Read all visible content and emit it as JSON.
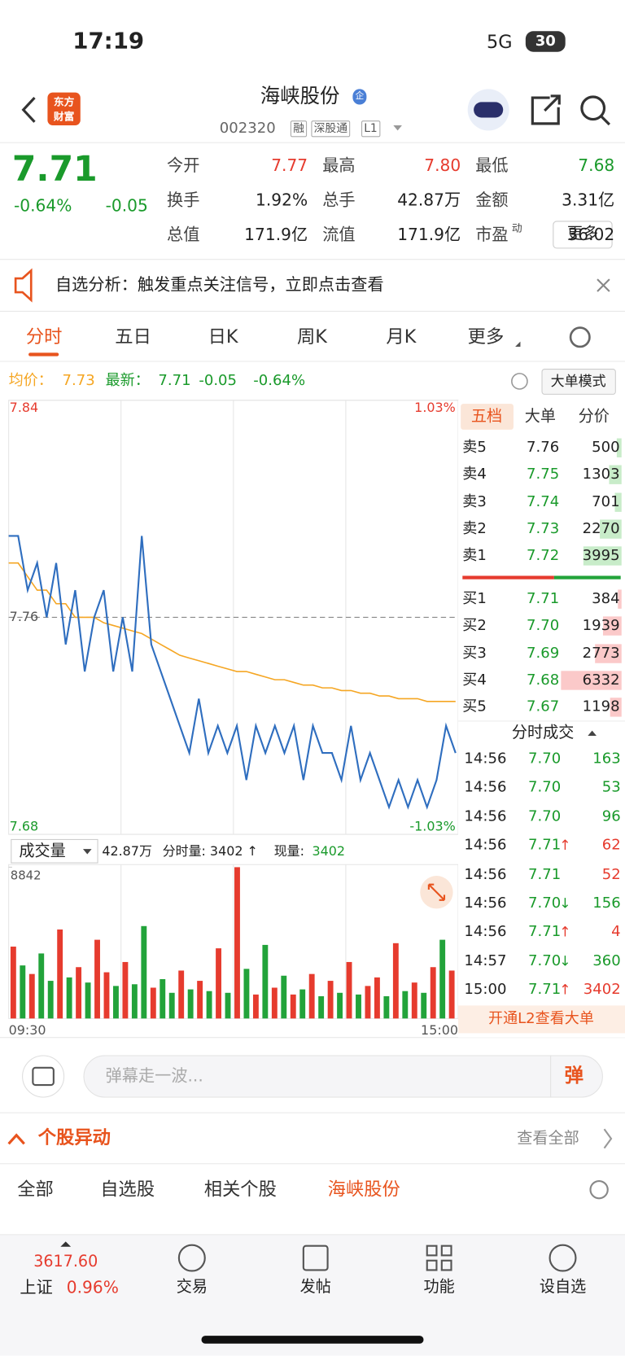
{
  "status": {
    "time": "17:19",
    "network": "5G",
    "battery": "30"
  },
  "header": {
    "logo": [
      "东方",
      "财富"
    ],
    "title": "海峡股份",
    "badge": "企",
    "code": "002320",
    "tags": [
      "融",
      "深股通",
      "L1"
    ]
  },
  "quote": {
    "price": "7.71",
    "change_pct": "-0.64%",
    "change": "-0.05",
    "color": "#1a9a2b",
    "stats": [
      {
        "label": "今开",
        "value": "7.77",
        "color": "#e63b2e"
      },
      {
        "label": "最高",
        "value": "7.80",
        "color": "#e63b2e"
      },
      {
        "label": "最低",
        "value": "7.68",
        "color": "#1a9a2b"
      },
      {
        "label": "换手",
        "value": "1.92%",
        "color": "#222222"
      },
      {
        "label": "总手",
        "value": "42.87万",
        "color": "#222222"
      },
      {
        "label": "金额",
        "value": "3.31亿",
        "color": "#222222"
      },
      {
        "label": "总值",
        "value": "171.9亿",
        "color": "#222222"
      },
      {
        "label": "流值",
        "value": "171.9亿",
        "color": "#222222"
      },
      {
        "label": "市盈",
        "sup": "动",
        "value": "36.02",
        "color": "#222222"
      }
    ],
    "more": "更多"
  },
  "notice": {
    "text": "自选分析：触发重点关注信号，立即点击查看"
  },
  "tabs": [
    "分时",
    "五日",
    "日K",
    "周K",
    "月K",
    "更多"
  ],
  "info_bar": {
    "avg_label": "均价：",
    "avg": "7.73",
    "last_label": "最新：",
    "last": "7.71",
    "change": "-0.05",
    "change_pct": "-0.64%",
    "mode": "大单模式"
  },
  "chart_data": [
    {
      "type": "line",
      "ylim": [
        7.68,
        7.84
      ],
      "yticks": [
        7.84,
        7.76,
        7.68
      ],
      "y2lim": [
        -1.03,
        1.03
      ],
      "y2ticks": [
        {
          "value": 1.03,
          "label": "1.03%"
        },
        {
          "value": -1.03,
          "label": "-1.03%"
        }
      ],
      "series": [
        {
          "color": "#2f6ebf",
          "values": [
            7.79,
            7.79,
            7.77,
            7.78,
            7.76,
            7.78,
            7.75,
            7.77,
            7.74,
            7.76,
            7.77,
            7.74,
            7.76,
            7.74,
            7.79,
            7.75,
            7.74,
            7.73,
            7.72,
            7.71,
            7.73,
            7.71,
            7.72,
            7.71,
            7.72,
            7.7,
            7.72,
            7.71,
            7.72,
            7.71,
            7.72,
            7.7,
            7.72,
            7.71,
            7.71,
            7.7,
            7.72,
            7.7,
            7.71,
            7.7,
            7.69,
            7.7,
            7.69,
            7.7,
            7.69,
            7.7,
            7.72,
            7.71
          ]
        },
        {
          "color": "#f5a623",
          "values": [
            7.78,
            7.78,
            7.775,
            7.77,
            7.77,
            7.765,
            7.765,
            7.76,
            7.76,
            7.76,
            7.758,
            7.757,
            7.756,
            7.755,
            7.754,
            7.752,
            7.75,
            7.748,
            7.746,
            7.745,
            7.744,
            7.743,
            7.742,
            7.741,
            7.74,
            7.74,
            7.739,
            7.738,
            7.737,
            7.737,
            7.736,
            7.735,
            7.735,
            7.734,
            7.734,
            7.733,
            7.733,
            7.732,
            7.732,
            7.731,
            7.731,
            7.73,
            7.73,
            7.73,
            7.729,
            7.729,
            7.729,
            7.729
          ]
        }
      ]
    },
    {
      "type": "bar",
      "ylim": [
        0,
        8842
      ],
      "yticks": [
        8842
      ],
      "x_labels": [
        "09:30",
        "15:00"
      ],
      "values": [
        4200,
        3100,
        2600,
        3800,
        2200,
        5200,
        2400,
        3000,
        2100,
        4600,
        2700,
        1900,
        3300,
        2000,
        5400,
        1800,
        2300,
        1500,
        2800,
        1700,
        2200,
        1600,
        4100,
        1500,
        8842,
        2900,
        1400,
        4300,
        1800,
        2500,
        1400,
        1700,
        2600,
        1300,
        2200,
        1500,
        3300,
        1400,
        1900,
        2400,
        1300,
        4400,
        1600,
        2100,
        1500,
        3000,
        4600,
        2800
      ],
      "colors": [
        "#e63b2e",
        "#22a33a",
        "#e63b2e",
        "#22a33a",
        "#22a33a",
        "#e63b2e",
        "#22a33a",
        "#e63b2e",
        "#22a33a",
        "#e63b2e",
        "#e63b2e",
        "#22a33a",
        "#e63b2e",
        "#22a33a",
        "#22a33a",
        "#e63b2e",
        "#22a33a",
        "#22a33a",
        "#e63b2e",
        "#22a33a",
        "#e63b2e",
        "#22a33a",
        "#e63b2e",
        "#22a33a",
        "#e63b2e",
        "#22a33a",
        "#e63b2e",
        "#22a33a",
        "#e63b2e",
        "#22a33a",
        "#e63b2e",
        "#22a33a",
        "#e63b2e",
        "#22a33a",
        "#e63b2e",
        "#22a33a",
        "#e63b2e",
        "#22a33a",
        "#e63b2e",
        "#e63b2e",
        "#22a33a",
        "#e63b2e",
        "#22a33a",
        "#e63b2e",
        "#22a33a",
        "#e63b2e",
        "#22a33a",
        "#e63b2e"
      ],
      "legend": {
        "label": "成交量",
        "total": "42.87万",
        "minute_vol": "分时量: 3402 ↑",
        "now_label": "现量:",
        "now": "3402"
      }
    }
  ],
  "order_book": {
    "tabs": [
      "五档",
      "大单",
      "分价"
    ],
    "asks": [
      {
        "label": "卖5",
        "price": "7.76",
        "price_color": "#222222",
        "volume": 500
      },
      {
        "label": "卖4",
        "price": "7.75",
        "price_color": "#1a9a2b",
        "volume": 1303
      },
      {
        "label": "卖3",
        "price": "7.74",
        "price_color": "#1a9a2b",
        "volume": 701
      },
      {
        "label": "卖2",
        "price": "7.73",
        "price_color": "#1a9a2b",
        "volume": 2270
      },
      {
        "label": "卖1",
        "price": "7.72",
        "price_color": "#1a9a2b",
        "volume": 3995
      }
    ],
    "bids": [
      {
        "label": "买1",
        "price": "7.71",
        "price_color": "#1a9a2b",
        "volume": 384
      },
      {
        "label": "买2",
        "price": "7.70",
        "price_color": "#1a9a2b",
        "volume": 1939
      },
      {
        "label": "买3",
        "price": "7.69",
        "price_color": "#1a9a2b",
        "volume": 2773
      },
      {
        "label": "买4",
        "price": "7.68",
        "price_color": "#1a9a2b",
        "volume": 6332
      },
      {
        "label": "买5",
        "price": "7.67",
        "price_color": "#1a9a2b",
        "volume": 1198
      }
    ]
  },
  "trades": {
    "title": "分时成交",
    "rows": [
      {
        "time": "14:56",
        "price": "7.70",
        "volume": "163",
        "color": "#1a9a2b"
      },
      {
        "time": "14:56",
        "price": "7.70",
        "volume": "53",
        "color": "#1a9a2b"
      },
      {
        "time": "14:56",
        "price": "7.70",
        "volume": "96",
        "color": "#1a9a2b"
      },
      {
        "time": "14:56",
        "price": "7.71",
        "arrow": "↑",
        "volume": "62",
        "color": "#e63b2e"
      },
      {
        "time": "14:56",
        "price": "7.71",
        "volume": "52",
        "color": "#e63b2e"
      },
      {
        "time": "14:56",
        "price": "7.70",
        "arrow": "↓",
        "volume": "156",
        "color": "#1a9a2b"
      },
      {
        "time": "14:56",
        "price": "7.71",
        "arrow": "↑",
        "volume": "4",
        "color": "#e63b2e"
      },
      {
        "time": "14:57",
        "price": "7.70",
        "arrow": "↓",
        "volume": "360",
        "color": "#1a9a2b"
      },
      {
        "time": "15:00",
        "price": "7.71",
        "arrow": "↑",
        "volume": "3402",
        "color": "#e63b2e"
      }
    ],
    "banner": "开通L2查看大单"
  },
  "comment": {
    "placeholder": "弹幕走一波...",
    "button": "弹"
  },
  "movers": {
    "title": "个股异动",
    "view_all": "查看全部",
    "tabs": [
      "全部",
      "自选股",
      "相关个股",
      "海峡股份"
    ]
  },
  "nav": {
    "index_value": "3617.60",
    "index_name": "上证",
    "index_change": "0.96%",
    "items": [
      "交易",
      "发帖",
      "功能",
      "设自选"
    ]
  }
}
